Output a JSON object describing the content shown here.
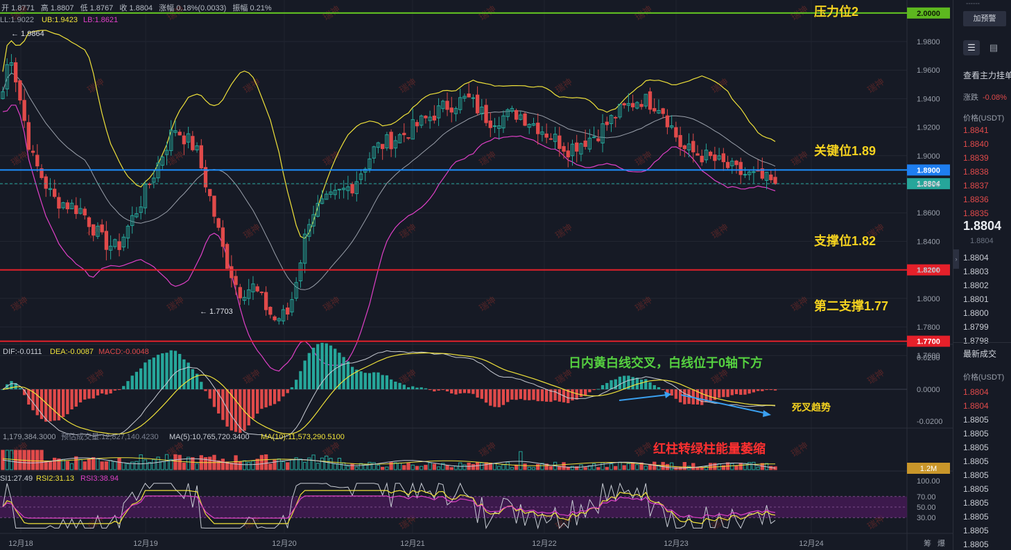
{
  "header": {
    "open_label": "开",
    "open": "1.8771",
    "high_label": "高",
    "high": "1.8807",
    "low_label": "低",
    "low": "1.8767",
    "close_label": "收",
    "close": "1.8804",
    "change_label": "涨幅",
    "change": "0.18%(0.0033)",
    "amp_label": "振幅",
    "amp": "0.21%"
  },
  "boll": {
    "ll": "LL:1.9022",
    "ub": "UB:1.9423",
    "lb": "LB:1.8621"
  },
  "price_axis": [
    "1.9800",
    "1.9600",
    "1.9400",
    "1.9200",
    "1.9000",
    "1.8800",
    "1.8600",
    "1.8400",
    "1.8200",
    "1.8000",
    "1.7800",
    "1.7600"
  ],
  "level_tags": {
    "resistance": "2.0000",
    "key": "1.8900",
    "current": "1.8804",
    "support": "1.8200",
    "support2": "1.7700"
  },
  "annotations": {
    "resistance": "压力位2",
    "key": "关键位1.89",
    "support": "支撑位1.82",
    "support2": "第二支撑1.77",
    "high_mark": "← 1.9864",
    "low_mark": "← 1.7703",
    "macd_note": "日内黄白线交叉，白线位于0轴下方",
    "death_cross": "死叉趋势",
    "volume_note": "红柱转绿柱能量萎缩",
    "watermark": "瑞神"
  },
  "macd": {
    "dif": "DIF:-0.0111",
    "dea": "DEA:-0.0087",
    "macd": "MACD:-0.0048",
    "axis": [
      "0.0200",
      "0.0000",
      "-0.0200"
    ]
  },
  "volume": {
    "vol": "1,179,384.3000",
    "est": "预估成交量:12,827,140.4230",
    "ma5": "MA(5):10,765,720.3400",
    "ma10": "MA(10):11,573,290.5100",
    "tag": "1.2M"
  },
  "rsi": {
    "rsi1": "SI1:27.49",
    "rsi2": "RSI2:31.13",
    "rsi3": "RSI3:38.94",
    "axis": [
      "100.00",
      "70.00",
      "50.00",
      "30.00"
    ]
  },
  "x_axis": [
    "12月18",
    "12月19",
    "12月20",
    "12月21",
    "12月22",
    "12月23",
    "12月24"
  ],
  "bottom_icons": [
    "筹",
    "爆"
  ],
  "colors": {
    "up": "#26a69a",
    "down": "#e04a4a",
    "ub": "#f0e23a",
    "lb": "#e040c8",
    "mid": "#9aa0ab",
    "key": "#1e90ff",
    "support": "#e5202a",
    "resistance": "#66cc22",
    "annotation": "#f5d21f",
    "green_text": "#55d040",
    "red_text": "#ff3030"
  },
  "sidebar": {
    "dashes": "------",
    "alert_button": "加预警",
    "order_book_title": "查看主力挂单",
    "change_label": "涨跌",
    "change_value": "-0.08%",
    "price_header": "价格(USDT)",
    "asks": [
      "1.8841",
      "1.8840",
      "1.8839",
      "1.8838",
      "1.8837",
      "1.8836",
      "1.8835"
    ],
    "last_price": "1.8804",
    "last_price_sub": "1.8804",
    "bids": [
      "1.8804",
      "1.8803",
      "1.8802",
      "1.8801",
      "1.8800",
      "1.8799",
      "1.8798"
    ],
    "trades_title": "最新成交",
    "trades_price_header": "价格(USDT)",
    "trades": [
      "1.8804",
      "1.8804",
      "1.8805",
      "1.8805",
      "1.8805",
      "1.8805",
      "1.8805",
      "1.8805",
      "1.8805",
      "1.8805",
      "1.8805",
      "1.8805"
    ]
  }
}
